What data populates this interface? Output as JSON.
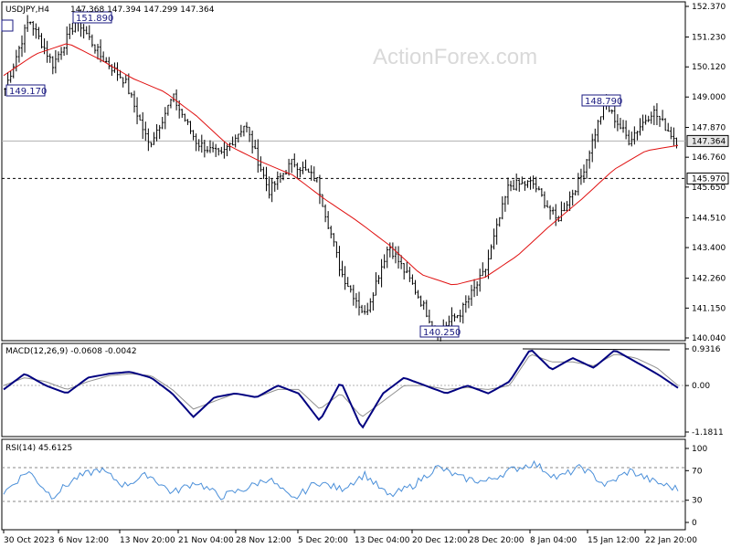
{
  "chart_data": [
    {
      "type": "candlestick",
      "title": "USDJPY,H4",
      "ohlc_label": "147.368 147.394 147.299 147.364",
      "watermark": "ActionForex.com",
      "ylim": [
        140.04,
        152.37
      ],
      "y_ticks": [
        "152.370",
        "151.230",
        "150.120",
        "149.000",
        "147.870",
        "146.760",
        "145.650",
        "144.510",
        "143.400",
        "142.260",
        "141.150",
        "140.040"
      ],
      "x_ticks": [
        "30 Oct 2023",
        "6 Nov 12:00",
        "13 Nov 20:00",
        "21 Nov 04:00",
        "28 Nov 12:00",
        "5 Dec 20:00",
        "13 Dec 04:00",
        "20 Dec 12:00",
        "28 Dec 20:00",
        "8 Jan 04:00",
        "15 Jan 12:00",
        "22 Jan 20:00"
      ],
      "price_anchors": [
        149.3,
        151.9,
        150.2,
        151.9,
        150.5,
        149.6,
        147.2,
        149.0,
        147.3,
        146.8,
        148.0,
        145.5,
        146.6,
        145.9,
        142.5,
        140.9,
        143.5,
        142.0,
        140.25,
        141.0,
        142.5,
        145.7,
        145.8,
        144.4,
        146.0,
        148.79,
        147.4,
        148.5,
        147.364
      ],
      "moving_average_anchors": [
        149.8,
        150.6,
        151.0,
        150.4,
        149.7,
        149.2,
        148.3,
        147.2,
        146.6,
        146.1,
        145.2,
        144.4,
        143.5,
        142.4,
        142.0,
        142.3,
        143.1,
        144.2,
        145.2,
        146.3,
        147.0,
        147.2
      ],
      "levels": [
        {
          "label": "147.364",
          "kind": "current"
        },
        {
          "label": "145.970",
          "kind": "support"
        }
      ],
      "annotations": [
        "151.890",
        "149.170",
        "148.790",
        "140.250"
      ],
      "colors": {
        "price": "#000000",
        "ma": "#e01010",
        "box": "#1a1a80",
        "grid": "#b0b0b0"
      }
    },
    {
      "type": "line",
      "title": "MACD(12,26,9) -0.0608 -0.0042",
      "ylim": [
        -1.1811,
        0.9316
      ],
      "y_ticks": [
        "0.9316",
        "0.00",
        "-1.1811"
      ],
      "macd_anchors": [
        -0.1,
        0.3,
        0.0,
        -0.2,
        0.2,
        0.3,
        0.35,
        0.2,
        -0.2,
        -0.8,
        -0.3,
        -0.2,
        -0.3,
        0.0,
        -0.2,
        -0.9,
        0.1,
        -1.1,
        -0.2,
        0.2,
        0.0,
        -0.2,
        0.0,
        -0.2,
        0.1,
        0.93,
        0.4,
        0.7,
        0.45,
        0.9,
        0.6,
        0.3,
        -0.06
      ],
      "signal_anchors": [
        0.0,
        0.2,
        0.1,
        -0.1,
        0.1,
        0.25,
        0.3,
        0.25,
        -0.1,
        -0.6,
        -0.4,
        -0.2,
        -0.3,
        -0.1,
        -0.1,
        -0.6,
        -0.2,
        -0.8,
        -0.4,
        0.0,
        0.0,
        -0.1,
        -0.05,
        -0.1,
        0.0,
        0.8,
        0.6,
        0.6,
        0.5,
        0.8,
        0.7,
        0.45,
        0.0
      ],
      "colors": {
        "macd": "#000080",
        "signal": "#909090"
      }
    },
    {
      "type": "line",
      "title": "RSI(14) 45.6125",
      "ylim": [
        0,
        100
      ],
      "y_ticks": [
        "100",
        "70",
        "30",
        "0"
      ],
      "rsi_anchors": [
        40,
        70,
        35,
        60,
        72,
        50,
        65,
        40,
        55,
        35,
        45,
        60,
        30,
        55,
        45,
        65,
        35,
        50,
        75,
        60,
        55,
        70,
        80,
        60,
        75,
        50,
        70,
        55,
        45
      ],
      "colors": {
        "rsi": "#4a8fd9",
        "levels": "#888888"
      }
    }
  ]
}
